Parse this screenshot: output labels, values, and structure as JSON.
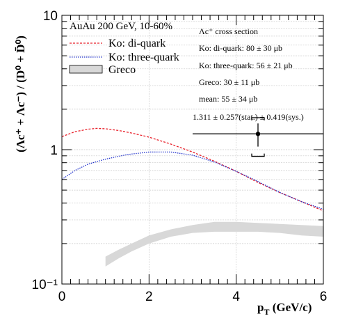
{
  "chart_data": {
    "type": "line",
    "yscale": "log",
    "xlim": [
      0,
      6
    ],
    "ylim": [
      0.1,
      10
    ],
    "grid": true,
    "legend_position": "top-left",
    "x_ticks": [
      "0",
      "2",
      "4",
      "6"
    ],
    "y_ticks": [
      "10⁻¹",
      "1",
      "10"
    ],
    "xlabel": {
      "main": "p",
      "sub": "T",
      "tail": " (GeV/c)"
    },
    "ylabel": "(Λc⁺ + Λc⁻) / (D⁰ + D̄⁰)",
    "legend": {
      "header": "AuAu 200 GeV, 10-60%",
      "entries": [
        "Ko: di-quark",
        "Ko: three-quark",
        "Greco"
      ]
    },
    "cross_section": {
      "title": "Λc⁺ cross section",
      "lines": [
        "Ko: di-quark: 80 ± 30 μb",
        "Ko: three-quark: 56 ± 21 μb",
        "Greco: 30 ± 11 μb",
        "mean: 55 ± 34 μb"
      ]
    },
    "series": [
      {
        "name": "Ko: di-quark",
        "color": "#e8202a",
        "style": "dashed",
        "x": [
          0,
          0.3,
          0.6,
          0.8,
          1.0,
          1.3,
          1.6,
          2.0,
          2.5,
          3.0,
          3.5,
          4.0,
          4.5,
          5.0,
          5.5,
          6.0
        ],
        "y": [
          1.25,
          1.36,
          1.42,
          1.44,
          1.43,
          1.39,
          1.33,
          1.24,
          1.1,
          0.96,
          0.82,
          0.69,
          0.57,
          0.48,
          0.41,
          0.35
        ]
      },
      {
        "name": "Ko: three-quark",
        "color": "#2233cc",
        "style": "dotted",
        "x": [
          0,
          0.3,
          0.6,
          1.0,
          1.5,
          2.0,
          2.5,
          3.0,
          3.5,
          4.0,
          4.5,
          5.0,
          5.5,
          6.0
        ],
        "y": [
          0.6,
          0.7,
          0.78,
          0.85,
          0.92,
          0.96,
          0.96,
          0.91,
          0.81,
          0.69,
          0.58,
          0.48,
          0.41,
          0.36
        ]
      }
    ],
    "band": {
      "name": "Greco",
      "color": "#d8d8d8",
      "x": [
        1.0,
        1.3,
        1.6,
        2.0,
        2.5,
        3.0,
        3.5,
        4.0,
        4.5,
        5.0,
        5.5,
        6.0
      ],
      "upper": [
        0.16,
        0.18,
        0.2,
        0.23,
        0.255,
        0.275,
        0.29,
        0.29,
        0.285,
        0.28,
        0.275,
        0.27
      ],
      "lower": [
        0.135,
        0.155,
        0.175,
        0.2,
        0.225,
        0.24,
        0.245,
        0.245,
        0.245,
        0.24,
        0.23,
        0.225
      ]
    },
    "data_point": {
      "x": 4.5,
      "y": 1.311,
      "x_err": 1.5,
      "stat_err": 0.257,
      "sys_err": 0.419,
      "label": "1.311 ± 0.257(stat.) ± 0.419(sys.)"
    }
  }
}
